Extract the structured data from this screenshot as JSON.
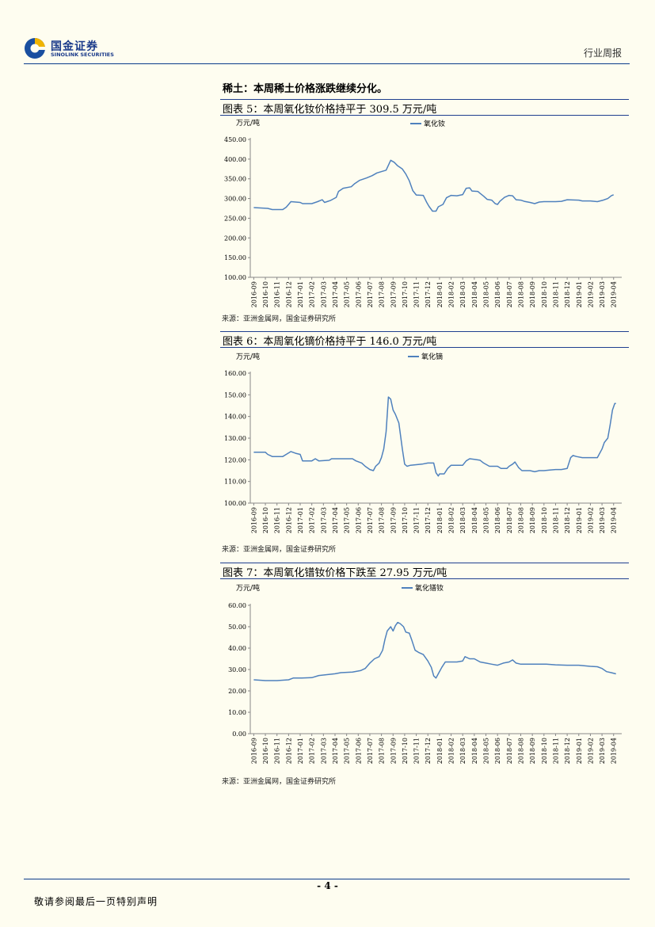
{
  "header": {
    "company_cn": "国金证券",
    "company_en": "SINOLINK SECURITIES",
    "report_type": "行业周报"
  },
  "section_title": "稀土：本周稀土价格涨跌继续分化。",
  "figures": [
    {
      "title": "图表 5：本周氧化钕价格持平于 309.5 万元/吨",
      "source": "来源：亚洲金属网，国金证券研究所"
    },
    {
      "title": "图表 6：本周氧化镝价格持平于 146.0 万元/吨",
      "source": "来源：亚洲金属网，国金证券研究所"
    },
    {
      "title": "图表 7：本周氧化镨钕价格下跌至 27.95 万元/吨",
      "source": "来源：亚洲金属网，国金证券研究所"
    }
  ],
  "footer": {
    "page_number": "- 4 -",
    "disclaimer": "敬请参阅最后一页特别声明"
  },
  "chart_data": [
    {
      "type": "line",
      "ylabel": "万元/吨",
      "ylim": [
        100,
        450
      ],
      "yticks": [
        "450.00",
        "400.00",
        "350.00",
        "300.00",
        "250.00",
        "200.00",
        "150.00",
        "100.00"
      ],
      "grid": false,
      "legend": "top",
      "x_categories": [
        "2016-09",
        "2016-10",
        "2016-11",
        "2016-12",
        "2017-01",
        "2017-02",
        "2017-03",
        "2017-04",
        "2017-05",
        "2017-06",
        "2017-07",
        "2017-08",
        "2017-09",
        "2017-10",
        "2017-11",
        "2017-12",
        "2018-01",
        "2018-02",
        "2018-03",
        "2018-04",
        "2018-05",
        "2018-06",
        "2018-07",
        "2018-08",
        "2018-09",
        "2018-10",
        "2018-11",
        "2018-12",
        "2019-01",
        "2019-02",
        "2019-03",
        "2019-04"
      ],
      "series": [
        {
          "name": "氧化钕",
          "color": "#4F81BD",
          "points": [
            [
              0,
              277
            ],
            [
              1.2,
              275
            ],
            [
              1.6,
              272
            ],
            [
              2.5,
              272
            ],
            [
              2.8,
              278
            ],
            [
              3.0,
              285
            ],
            [
              3.2,
              292
            ],
            [
              4.0,
              290
            ],
            [
              4.2,
              287
            ],
            [
              5.0,
              287
            ],
            [
              5.5,
              292
            ],
            [
              5.9,
              297
            ],
            [
              6.1,
              290
            ],
            [
              6.6,
              295
            ],
            [
              7.1,
              303
            ],
            [
              7.3,
              318
            ],
            [
              7.7,
              326
            ],
            [
              8.4,
              330
            ],
            [
              8.7,
              338
            ],
            [
              9.1,
              346
            ],
            [
              9.7,
              352
            ],
            [
              10.2,
              358
            ],
            [
              10.6,
              365
            ],
            [
              11.4,
              372
            ],
            [
              11.8,
              397
            ],
            [
              12.1,
              392
            ],
            [
              12.4,
              383
            ],
            [
              12.8,
              375
            ],
            [
              13.1,
              362
            ],
            [
              13.4,
              345
            ],
            [
              13.7,
              320
            ],
            [
              14.0,
              309
            ],
            [
              14.6,
              308
            ],
            [
              14.9,
              290
            ],
            [
              15.1,
              280
            ],
            [
              15.4,
              268
            ],
            [
              15.7,
              268
            ],
            [
              15.9,
              279
            ],
            [
              16.3,
              285
            ],
            [
              16.6,
              302
            ],
            [
              17.0,
              308
            ],
            [
              17.5,
              307
            ],
            [
              18.0,
              310
            ],
            [
              18.3,
              326
            ],
            [
              18.6,
              327
            ],
            [
              18.8,
              319
            ],
            [
              19.3,
              318
            ],
            [
              19.5,
              313
            ],
            [
              19.8,
              306
            ],
            [
              20.1,
              298
            ],
            [
              20.5,
              296
            ],
            [
              20.8,
              287
            ],
            [
              21.0,
              285
            ],
            [
              21.2,
              293
            ],
            [
              21.6,
              303
            ],
            [
              22.0,
              308
            ],
            [
              22.3,
              307
            ],
            [
              22.6,
              297
            ],
            [
              23.0,
              296
            ],
            [
              23.3,
              293
            ],
            [
              23.8,
              290
            ],
            [
              24.2,
              287
            ],
            [
              24.6,
              291
            ],
            [
              25.0,
              292
            ],
            [
              26.0,
              292
            ],
            [
              26.5,
              293
            ],
            [
              27.0,
              297
            ],
            [
              28.0,
              296
            ],
            [
              28.3,
              294
            ],
            [
              29.0,
              294
            ],
            [
              29.6,
              292
            ],
            [
              30.1,
              296
            ],
            [
              30.5,
              300
            ],
            [
              30.8,
              307
            ],
            [
              31.0,
              309.5
            ]
          ]
        }
      ]
    },
    {
      "type": "line",
      "ylabel": "万元/吨",
      "ylim": [
        100,
        160
      ],
      "yticks": [
        "160.00",
        "150.00",
        "140.00",
        "130.00",
        "120.00",
        "110.00",
        "100.00"
      ],
      "grid": false,
      "legend": "top",
      "x_categories": [
        "2016-09",
        "2016-10",
        "2016-11",
        "2016-12",
        "2017-01",
        "2017-02",
        "2017-03",
        "2017-04",
        "2017-05",
        "2017-06",
        "2017-07",
        "2017-08",
        "2017-09",
        "2017-10",
        "2017-11",
        "2017-12",
        "2018-01",
        "2018-02",
        "2018-03",
        "2018-04",
        "2018-05",
        "2018-06",
        "2018-07",
        "2018-08",
        "2018-09",
        "2018-10",
        "2018-11",
        "2018-12",
        "2019-01",
        "2019-02",
        "2019-03",
        "2019-04"
      ],
      "series": [
        {
          "name": "氧化镝",
          "color": "#4F81BD",
          "points": [
            [
              0,
              123.5
            ],
            [
              1.0,
              123.5
            ],
            [
              1.2,
              122.5
            ],
            [
              1.6,
              121.5
            ],
            [
              2.5,
              121.5
            ],
            [
              2.8,
              122.5
            ],
            [
              3.2,
              123.8
            ],
            [
              3.6,
              123
            ],
            [
              4.0,
              122.5
            ],
            [
              4.2,
              119.5
            ],
            [
              5.0,
              119.5
            ],
            [
              5.3,
              120.5
            ],
            [
              5.6,
              119.5
            ],
            [
              6.5,
              119.8
            ],
            [
              6.7,
              120.5
            ],
            [
              8.5,
              120.5
            ],
            [
              8.8,
              119.5
            ],
            [
              9.3,
              118.5
            ],
            [
              9.6,
              117
            ],
            [
              10.0,
              115.5
            ],
            [
              10.3,
              115
            ],
            [
              10.5,
              117
            ],
            [
              10.8,
              118.5
            ],
            [
              11.0,
              121
            ],
            [
              11.2,
              125
            ],
            [
              11.4,
              133
            ],
            [
              11.6,
              149
            ],
            [
              11.8,
              148
            ],
            [
              12.0,
              143
            ],
            [
              12.2,
              141
            ],
            [
              12.5,
              137
            ],
            [
              12.8,
              125
            ],
            [
              13.0,
              118
            ],
            [
              13.2,
              117
            ],
            [
              13.5,
              117.5
            ],
            [
              14.5,
              118
            ],
            [
              15.0,
              118.5
            ],
            [
              15.5,
              118.5
            ],
            [
              15.7,
              114
            ],
            [
              15.9,
              112.5
            ],
            [
              16.0,
              113.5
            ],
            [
              16.4,
              113.5
            ],
            [
              16.7,
              116
            ],
            [
              17.0,
              117.5
            ],
            [
              17.5,
              117.5
            ],
            [
              18.0,
              117.5
            ],
            [
              18.3,
              119.5
            ],
            [
              18.6,
              120.5
            ],
            [
              19.0,
              120.2
            ],
            [
              19.5,
              119.8
            ],
            [
              19.8,
              118.5
            ],
            [
              20.3,
              117
            ],
            [
              21.0,
              117
            ],
            [
              21.3,
              116
            ],
            [
              21.8,
              116
            ],
            [
              22.0,
              117
            ],
            [
              22.3,
              118
            ],
            [
              22.5,
              119
            ],
            [
              22.8,
              116.5
            ],
            [
              23.1,
              115
            ],
            [
              23.8,
              115
            ],
            [
              24.2,
              114.5
            ],
            [
              24.6,
              115
            ],
            [
              25.0,
              115
            ],
            [
              25.5,
              115.3
            ],
            [
              26.0,
              115.5
            ],
            [
              26.5,
              115.5
            ],
            [
              27.0,
              116
            ],
            [
              27.3,
              121
            ],
            [
              27.5,
              122
            ],
            [
              27.8,
              121.5
            ],
            [
              28.3,
              121
            ],
            [
              29.0,
              121
            ],
            [
              29.6,
              121
            ],
            [
              30.0,
              125
            ],
            [
              30.2,
              128
            ],
            [
              30.5,
              130
            ],
            [
              30.7,
              136
            ],
            [
              30.9,
              143
            ],
            [
              31.1,
              146
            ],
            [
              31.2,
              146
            ]
          ]
        }
      ]
    },
    {
      "type": "line",
      "ylabel": "万元/吨",
      "ylim": [
        0,
        60
      ],
      "yticks": [
        "60.00",
        "50.00",
        "40.00",
        "30.00",
        "20.00",
        "10.00",
        "0.00"
      ],
      "grid": false,
      "legend": "top",
      "x_categories": [
        "2016-09",
        "2016-10",
        "2016-11",
        "2016-12",
        "2017-01",
        "2017-02",
        "2017-03",
        "2017-04",
        "2017-05",
        "2017-06",
        "2017-07",
        "2017-08",
        "2017-09",
        "2017-10",
        "2017-11",
        "2017-12",
        "2018-01",
        "2018-02",
        "2018-03",
        "2018-04",
        "2018-05",
        "2018-06",
        "2018-07",
        "2018-08",
        "2018-09",
        "2018-10",
        "2018-11",
        "2018-12",
        "2019-01",
        "2019-02",
        "2019-03",
        "2019-04"
      ],
      "series": [
        {
          "name": "氧化镨钕",
          "color": "#4F81BD",
          "points": [
            [
              0,
              25.2
            ],
            [
              1.0,
              24.8
            ],
            [
              2.0,
              24.8
            ],
            [
              3.0,
              25.2
            ],
            [
              3.4,
              26.0
            ],
            [
              4.0,
              26.0
            ],
            [
              5.0,
              26.2
            ],
            [
              5.6,
              27.2
            ],
            [
              6.3,
              27.6
            ],
            [
              7.0,
              28.0
            ],
            [
              7.5,
              28.5
            ],
            [
              8.5,
              28.8
            ],
            [
              9.2,
              29.5
            ],
            [
              9.6,
              30.5
            ],
            [
              10.0,
              33
            ],
            [
              10.4,
              35
            ],
            [
              10.8,
              36
            ],
            [
              11.1,
              39
            ],
            [
              11.3,
              44
            ],
            [
              11.5,
              48
            ],
            [
              11.8,
              50
            ],
            [
              12.0,
              48
            ],
            [
              12.2,
              50.5
            ],
            [
              12.4,
              52
            ],
            [
              12.6,
              51.5
            ],
            [
              12.9,
              50
            ],
            [
              13.1,
              47.5
            ],
            [
              13.4,
              47
            ],
            [
              13.6,
              44
            ],
            [
              13.9,
              39
            ],
            [
              14.2,
              38
            ],
            [
              14.6,
              37
            ],
            [
              15.0,
              34
            ],
            [
              15.3,
              31
            ],
            [
              15.5,
              27
            ],
            [
              15.7,
              26
            ],
            [
              15.9,
              28
            ],
            [
              16.2,
              31
            ],
            [
              16.5,
              33.5
            ],
            [
              17.0,
              33.5
            ],
            [
              17.5,
              33.5
            ],
            [
              18.0,
              34
            ],
            [
              18.2,
              36
            ],
            [
              18.6,
              35
            ],
            [
              19.0,
              35
            ],
            [
              19.5,
              33.5
            ],
            [
              20.0,
              33
            ],
            [
              20.5,
              32.5
            ],
            [
              21.0,
              32
            ],
            [
              21.5,
              33
            ],
            [
              22.0,
              33.5
            ],
            [
              22.3,
              34.5
            ],
            [
              22.6,
              33
            ],
            [
              23.0,
              32.5
            ],
            [
              24.0,
              32.5
            ],
            [
              24.6,
              32.5
            ],
            [
              25.2,
              32.5
            ],
            [
              26.0,
              32.2
            ],
            [
              27.0,
              32.0
            ],
            [
              28.0,
              32.0
            ],
            [
              29.0,
              31.5
            ],
            [
              29.6,
              31.3
            ],
            [
              30.0,
              30.5
            ],
            [
              30.4,
              29
            ],
            [
              30.8,
              28.5
            ],
            [
              31.2,
              27.95
            ]
          ]
        }
      ]
    }
  ]
}
